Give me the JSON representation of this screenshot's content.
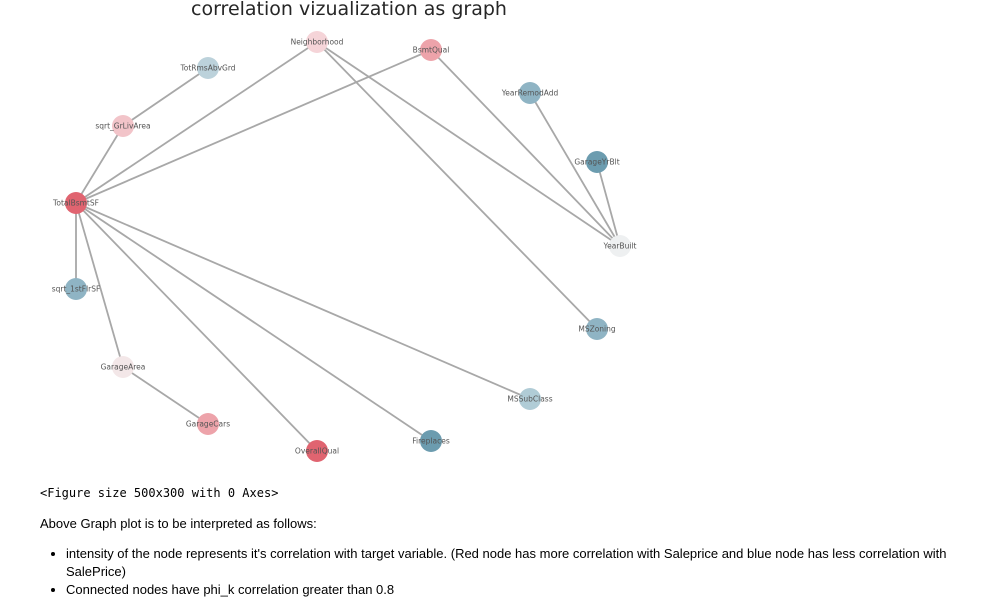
{
  "title": "correlation vizualization as graph",
  "figure_output": "<Figure size 500x300 with 0 Axes>",
  "explanation": "Above Graph plot is to be interpreted as follows:",
  "bullets": [
    "intensity of the node represents it's correlation with target variable. (Red node has more correlation with Saleprice and blue node has less correlation with SalePrice)",
    "Connected nodes have phi_k correlation greater than 0.8"
  ],
  "colors": {
    "strong_red": "#e06470",
    "pink": "#eda3aa",
    "light_pink": "#f5d4d8",
    "near_white": "#f0eded",
    "light_blue": "#b0ccd6",
    "mid_blue": "#8fb4c4",
    "dark_blue": "#6c9caf",
    "edge": "#a8a8a8"
  },
  "nodes": [
    {
      "id": "Neighborhood",
      "label": "Neighborhood",
      "color": "#f5d4d8"
    },
    {
      "id": "BsmtQual",
      "label": "BsmtQual",
      "color": "#eda3aa"
    },
    {
      "id": "TotRmsAbvGrd",
      "label": "TotRmsAbvGrd",
      "color": "#bcd2db"
    },
    {
      "id": "YearRemodAdd",
      "label": "YearRemodAdd",
      "color": "#8fb4c4"
    },
    {
      "id": "sqrt_GrLivArea",
      "label": "sqrt_GrLivArea",
      "color": "#f2c4c9"
    },
    {
      "id": "GarageYrBlt",
      "label": "GarageYrBlt",
      "color": "#6c9caf"
    },
    {
      "id": "TotalBsmtSF",
      "label": "TotalBsmtSF",
      "color": "#e06470"
    },
    {
      "id": "YearBuilt",
      "label": "YearBuilt",
      "color": "#eef0f1"
    },
    {
      "id": "sqrt_1stFlrSF",
      "label": "sqrt_1stFlrSF",
      "color": "#8fb4c4"
    },
    {
      "id": "MSZoning",
      "label": "MSZoning",
      "color": "#8fb4c4"
    },
    {
      "id": "GarageArea",
      "label": "GarageArea",
      "color": "#f3e7e8"
    },
    {
      "id": "MSSubClass",
      "label": "MSSubClass",
      "color": "#b0ccd6"
    },
    {
      "id": "GarageCars",
      "label": "GarageCars",
      "color": "#eda3aa"
    },
    {
      "id": "Fireplaces",
      "label": "Fireplaces",
      "color": "#6c9caf"
    },
    {
      "id": "OverallQual",
      "label": "OverallQual",
      "color": "#e06470"
    }
  ],
  "edges": [
    [
      "TotRmsAbvGrd",
      "sqrt_GrLivArea"
    ],
    [
      "sqrt_GrLivArea",
      "TotalBsmtSF"
    ],
    [
      "Neighborhood",
      "TotalBsmtSF"
    ],
    [
      "BsmtQual",
      "TotalBsmtSF"
    ],
    [
      "TotalBsmtSF",
      "sqrt_1stFlrSF"
    ],
    [
      "TotalBsmtSF",
      "GarageArea"
    ],
    [
      "TotalBsmtSF",
      "OverallQual"
    ],
    [
      "TotalBsmtSF",
      "Fireplaces"
    ],
    [
      "TotalBsmtSF",
      "MSSubClass"
    ],
    [
      "GarageArea",
      "GarageCars"
    ],
    [
      "Neighborhood",
      "YearBuilt"
    ],
    [
      "Neighborhood",
      "MSZoning"
    ],
    [
      "BsmtQual",
      "YearBuilt"
    ],
    [
      "YearRemodAdd",
      "YearBuilt"
    ],
    [
      "GarageYrBlt",
      "YearBuilt"
    ]
  ]
}
